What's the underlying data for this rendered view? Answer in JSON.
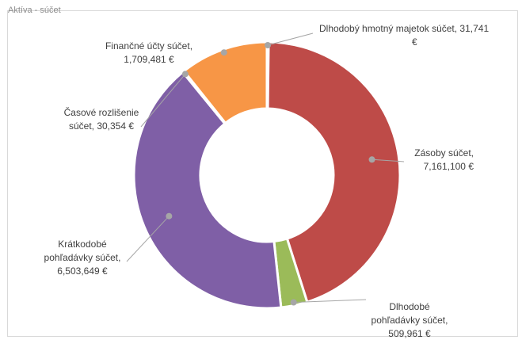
{
  "header": {
    "cropped_title": "Aktíva - súčet"
  },
  "chart_data": {
    "type": "pie",
    "variant": "donut",
    "categories": [
      "Dlhodobý hmotný majetok súčet",
      "Zásoby súčet",
      "Dlhodobé pohľadávky súčet",
      "Krátkodobé pohľadávky súčet",
      "Časové rozlišenie súčet",
      "Finančné účty súčet"
    ],
    "values": [
      31741,
      7161100,
      509961,
      6503649,
      30354,
      1709481
    ],
    "colors": [
      "#2e75b6",
      "#be4b48",
      "#9bbb59",
      "#7f5fa6",
      "#4bacc6",
      "#f79646"
    ],
    "labels": [
      {
        "lines": [
          "Dlhodobý hmotný majetok súčet, 31,741",
          "€"
        ]
      },
      {
        "lines": [
          "Zásoby súčet,",
          "7,161,100 €"
        ]
      },
      {
        "lines": [
          "Dlhodobé",
          "pohľadávky súčet,",
          "509,961 €"
        ]
      },
      {
        "lines": [
          "Krátkodobé",
          "pohľadávky súčet,",
          "6,503,649 €"
        ]
      },
      {
        "lines": [
          "Časové rozlišenie",
          "súčet, 30,354 €"
        ]
      },
      {
        "lines": [
          "Finančné účty súčet,",
          "1,709,481 €"
        ]
      }
    ],
    "legend": "none"
  }
}
